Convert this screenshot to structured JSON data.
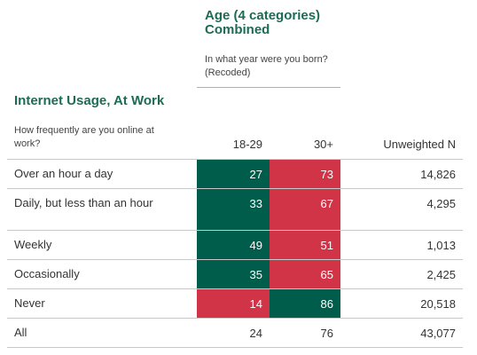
{
  "column_variable": {
    "title": "Age (4 categories) Combined",
    "subtitle": "In what year were you born? (Recoded)"
  },
  "row_variable": {
    "title": "Internet Usage, At Work",
    "subtitle": "How frequently are you online at work?"
  },
  "headers": {
    "col1": "18-29",
    "col2": "30+",
    "unweighted": "Unweighted N"
  },
  "colors": {
    "green": "#005d4b",
    "red": "#d13447",
    "text": "#333333",
    "title": "#1d6b55"
  },
  "chart_data": {
    "type": "table",
    "title": "Internet Usage, At Work",
    "columns": [
      "18-29",
      "30+",
      "Unweighted N"
    ],
    "rows": [
      {
        "label": "Over an hour a day",
        "values": [
          27,
          73
        ],
        "n": "14,826",
        "colors": [
          "green",
          "red"
        ]
      },
      {
        "label": "Daily, but less than an hour",
        "values": [
          33,
          67
        ],
        "n": "4,295",
        "colors": [
          "green",
          "red"
        ]
      },
      {
        "label": "Weekly",
        "values": [
          49,
          51
        ],
        "n": "1,013",
        "colors": [
          "green",
          "red"
        ]
      },
      {
        "label": "Occasionally",
        "values": [
          35,
          65
        ],
        "n": "2,425",
        "colors": [
          "green",
          "red"
        ]
      },
      {
        "label": "Never",
        "values": [
          14,
          86
        ],
        "n": "20,518",
        "colors": [
          "red",
          "green"
        ]
      }
    ],
    "total": {
      "label": "All",
      "values": [
        24,
        76
      ],
      "n": "43,077"
    }
  }
}
